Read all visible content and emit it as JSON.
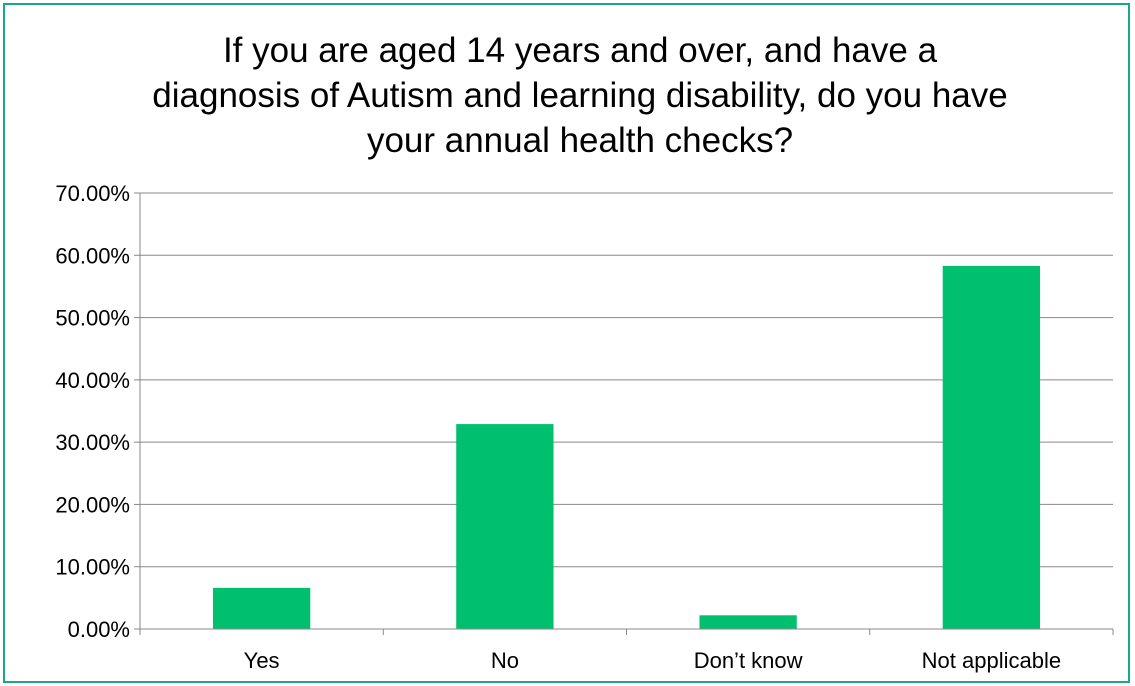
{
  "chart_data": {
    "type": "bar",
    "title": "If you are aged 14 years and over, and have a diagnosis of Autism and learning disability, do you have your annual health checks?",
    "categories": [
      "Yes",
      "No",
      "Don’t know",
      "Not applicable"
    ],
    "values": [
      0.066,
      0.329,
      0.022,
      0.583
    ],
    "ylim": [
      0,
      0.7
    ],
    "yticks": [
      0,
      0.1,
      0.2,
      0.3,
      0.4,
      0.5,
      0.6,
      0.7
    ],
    "ytick_labels": [
      "0.00%",
      "10.00%",
      "20.00%",
      "30.00%",
      "40.00%",
      "50.00%",
      "60.00%",
      "70.00%"
    ],
    "grid": true,
    "legend": "none",
    "bar_color": "#00bf6f",
    "grid_color": "#888888",
    "border_color": "#1aa889"
  }
}
